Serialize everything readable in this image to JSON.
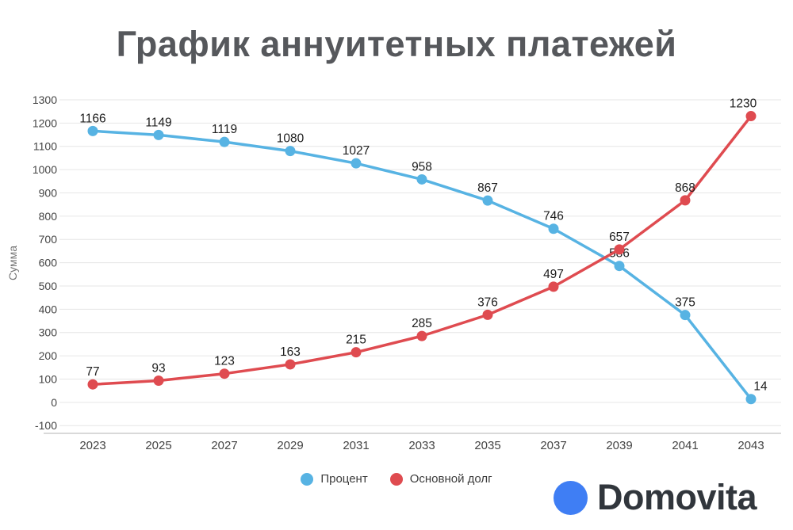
{
  "title": "График аннуитетных платежей",
  "chart_data": {
    "type": "line",
    "title": "График аннуитетных платежей",
    "x": [
      2023,
      2025,
      2027,
      2029,
      2031,
      2033,
      2035,
      2037,
      2039,
      2041,
      2043
    ],
    "series": [
      {
        "name": "Процент",
        "color": "#57b3e3",
        "values": [
          1166,
          1149,
          1119,
          1080,
          1027,
          958,
          867,
          746,
          586,
          375,
          14
        ]
      },
      {
        "name": "Основной долг",
        "color": "#df4b50",
        "values": [
          77,
          93,
          123,
          163,
          215,
          285,
          376,
          497,
          657,
          868,
          1230
        ]
      }
    ],
    "xlabel": "",
    "ylabel": "Сумма",
    "ylim": [
      -100,
      1300
    ],
    "ytick_step": 100,
    "grid": true,
    "point_labels": true,
    "legend_position": "bottom"
  },
  "colors": {
    "grid_line": "#e6e6e6",
    "axis_line": "#b3b3b3",
    "tick_text": "#444444",
    "point_label_text": "#1c1c1c",
    "axis_title_text": "#757575"
  },
  "branding": {
    "name": "Domovita",
    "dot_color": "#3f7ef4",
    "text_color": "#31363c"
  }
}
